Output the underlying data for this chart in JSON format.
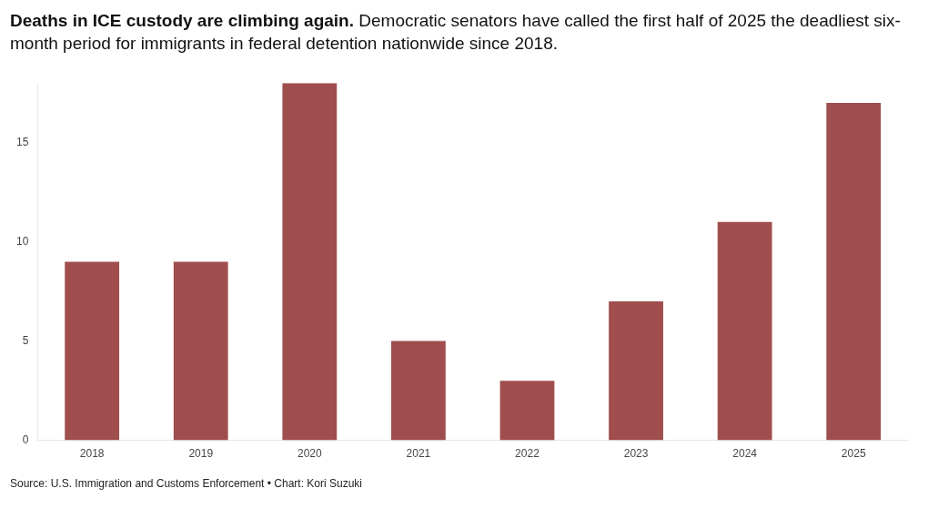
{
  "chart_data": {
    "type": "bar",
    "title": "Deaths in ICE custody are climbing again.",
    "subtitle": "Democratic senators have called the first half of 2025 the deadliest six-month period for immigrants in federal detention nationwide since 2018.",
    "categories": [
      "2018",
      "2019",
      "2020",
      "2021",
      "2022",
      "2023",
      "2024",
      "2025"
    ],
    "values": [
      9,
      9,
      18,
      5,
      3,
      7,
      11,
      17
    ],
    "color": "#a04d4d",
    "ylim": [
      0,
      18
    ],
    "yticks": [
      0,
      5,
      10,
      15
    ],
    "grid": false,
    "legend": false,
    "annotations": [
      "Source: U.S. Immigration and Customs Enforcement • Chart: Kori Suzuki"
    ]
  }
}
